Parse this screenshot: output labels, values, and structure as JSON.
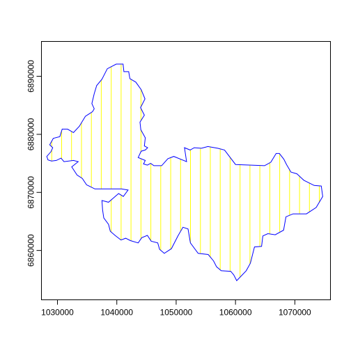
{
  "chart_data": {
    "type": "map",
    "title": "",
    "xlabel": "",
    "ylabel": "",
    "xlim": [
      1027300,
      1076000
    ],
    "ylim": [
      6851500,
      6896000
    ],
    "x_ticks": [
      1030000,
      1040000,
      1050000,
      1060000,
      1070000
    ],
    "x_tick_labels": [
      "1030000",
      "1040000",
      "1050000",
      "1060000",
      "1070000"
    ],
    "y_ticks": [
      6860000,
      6870000,
      6880000,
      6890000
    ],
    "y_tick_labels": [
      "6860000",
      "6870000",
      "6880000",
      "6890000"
    ],
    "grid": false,
    "outline_color": "#0000ff",
    "hatch_color": "#ffff00",
    "hatch_spacing": 1670,
    "polygon": [
      [
        1039900,
        6892100
      ],
      [
        1041050,
        6892100
      ],
      [
        1041200,
        6890800
      ],
      [
        1042000,
        6890800
      ],
      [
        1042200,
        6889600
      ],
      [
        1043200,
        6889000
      ],
      [
        1044100,
        6887700
      ],
      [
        1044750,
        6886100
      ],
      [
        1044000,
        6884600
      ],
      [
        1044650,
        6883300
      ],
      [
        1043900,
        6882100
      ],
      [
        1044050,
        6880800
      ],
      [
        1044800,
        6879400
      ],
      [
        1044650,
        6878000
      ],
      [
        1045200,
        6877700
      ],
      [
        1044800,
        6877300
      ],
      [
        1044100,
        6877100
      ],
      [
        1043600,
        6876000
      ],
      [
        1044800,
        6875500
      ],
      [
        1044500,
        6874900
      ],
      [
        1045150,
        6874700
      ],
      [
        1045700,
        6875000
      ],
      [
        1046250,
        6874600
      ],
      [
        1047550,
        6874600
      ],
      [
        1048600,
        6875800
      ],
      [
        1049600,
        6876200
      ],
      [
        1051750,
        6875300
      ],
      [
        1051400,
        6877700
      ],
      [
        1052350,
        6877300
      ],
      [
        1053050,
        6877700
      ],
      [
        1054250,
        6877600
      ],
      [
        1055350,
        6877900
      ],
      [
        1057000,
        6877600
      ],
      [
        1058150,
        6877300
      ],
      [
        1060000,
        6874800
      ],
      [
        1064900,
        6874600
      ],
      [
        1065950,
        6875200
      ],
      [
        1066850,
        6876700
      ],
      [
        1067400,
        6876700
      ],
      [
        1068150,
        6875700
      ],
      [
        1068600,
        6874800
      ],
      [
        1069350,
        6873500
      ],
      [
        1070350,
        6873200
      ],
      [
        1071500,
        6872100
      ],
      [
        1073250,
        6871200
      ],
      [
        1074450,
        6871100
      ],
      [
        1074700,
        6869300
      ],
      [
        1073600,
        6867400
      ],
      [
        1071950,
        6866300
      ],
      [
        1069700,
        6866300
      ],
      [
        1068500,
        6865800
      ],
      [
        1068100,
        6863500
      ],
      [
        1066700,
        6862700
      ],
      [
        1065450,
        6862900
      ],
      [
        1064600,
        6862500
      ],
      [
        1064400,
        6860700
      ],
      [
        1063200,
        6860600
      ],
      [
        1062500,
        6857800
      ],
      [
        1061800,
        6856500
      ],
      [
        1060200,
        6854800
      ],
      [
        1059700,
        6855800
      ],
      [
        1059200,
        6856400
      ],
      [
        1057600,
        6856500
      ],
      [
        1056800,
        6857200
      ],
      [
        1056300,
        6858200
      ],
      [
        1055400,
        6859300
      ],
      [
        1053700,
        6859500
      ],
      [
        1052400,
        6861300
      ],
      [
        1052000,
        6863700
      ],
      [
        1051150,
        6864000
      ],
      [
        1050300,
        6862500
      ],
      [
        1049200,
        6860300
      ],
      [
        1048000,
        6859500
      ],
      [
        1047200,
        6860200
      ],
      [
        1046900,
        6861300
      ],
      [
        1045800,
        6861600
      ],
      [
        1045150,
        6862600
      ],
      [
        1044200,
        6862200
      ],
      [
        1043600,
        6861300
      ],
      [
        1042300,
        6861700
      ],
      [
        1041500,
        6862100
      ],
      [
        1040700,
        6861800
      ],
      [
        1039700,
        6862600
      ],
      [
        1038900,
        6863300
      ],
      [
        1038600,
        6864500
      ],
      [
        1037800,
        6865600
      ],
      [
        1037600,
        6867000
      ],
      [
        1037500,
        6868600
      ],
      [
        1038600,
        6868300
      ],
      [
        1039500,
        6869100
      ],
      [
        1040300,
        6869800
      ],
      [
        1041100,
        6869300
      ],
      [
        1041900,
        6870400
      ],
      [
        1040800,
        6870600
      ],
      [
        1036300,
        6870600
      ],
      [
        1034900,
        6871300
      ],
      [
        1034200,
        6872400
      ],
      [
        1033300,
        6873000
      ],
      [
        1032400,
        6874400
      ],
      [
        1033500,
        6875300
      ],
      [
        1032700,
        6875500
      ],
      [
        1031100,
        6875300
      ],
      [
        1030600,
        6875900
      ],
      [
        1029800,
        6875500
      ],
      [
        1029000,
        6875400
      ],
      [
        1028400,
        6875600
      ],
      [
        1028200,
        6876200
      ],
      [
        1028900,
        6877000
      ],
      [
        1029200,
        6877700
      ],
      [
        1028700,
        6878200
      ],
      [
        1029300,
        6879300
      ],
      [
        1030400,
        6879600
      ],
      [
        1030800,
        6880900
      ],
      [
        1031700,
        6880900
      ],
      [
        1032700,
        6880300
      ],
      [
        1033700,
        6881400
      ],
      [
        1034700,
        6883100
      ],
      [
        1035900,
        6883900
      ],
      [
        1036200,
        6884400
      ],
      [
        1035800,
        6885300
      ],
      [
        1036200,
        6887000
      ],
      [
        1036600,
        6888400
      ],
      [
        1037500,
        6889500
      ],
      [
        1038400,
        6891300
      ]
    ]
  }
}
